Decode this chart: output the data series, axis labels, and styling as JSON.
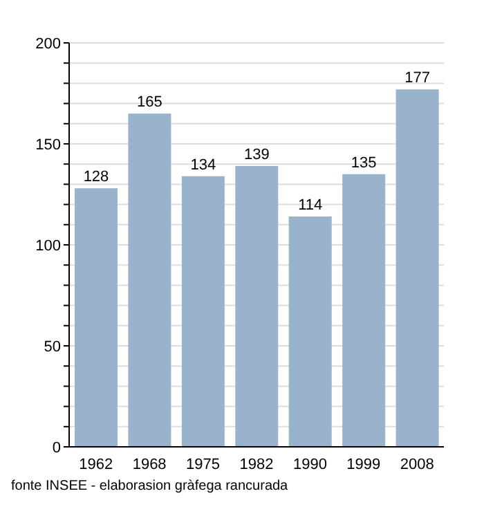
{
  "chart_data": {
    "type": "bar",
    "categories": [
      "1962",
      "1968",
      "1975",
      "1982",
      "1990",
      "1999",
      "2008"
    ],
    "values": [
      128,
      165,
      134,
      139,
      114,
      135,
      177
    ],
    "color": "#99b3cc",
    "ylim": [
      0,
      200
    ],
    "yticks": [
      0,
      {
        "value": 10,
        "label": null
      },
      {
        "value": 20,
        "label": null
      },
      {
        "value": 30,
        "label": null
      },
      {
        "value": 40,
        "label": null
      },
      50,
      {
        "value": 60,
        "label": null
      },
      {
        "value": 70,
        "label": null
      },
      {
        "value": 80,
        "label": null
      },
      {
        "value": 90,
        "label": null
      },
      100,
      {
        "value": 110,
        "label": null
      },
      {
        "value": 120,
        "label": null
      },
      {
        "value": 130,
        "label": null
      },
      {
        "value": 140,
        "label": null
      },
      150,
      {
        "value": 160,
        "label": null
      },
      {
        "value": 170,
        "label": null
      },
      {
        "value": 180,
        "label": null
      },
      {
        "value": 190,
        "label": null
      },
      200
    ],
    "grid": "y",
    "data_labels": true,
    "annotations": [
      "fonte INSEE - elaborasion gràfega rancurada"
    ]
  }
}
